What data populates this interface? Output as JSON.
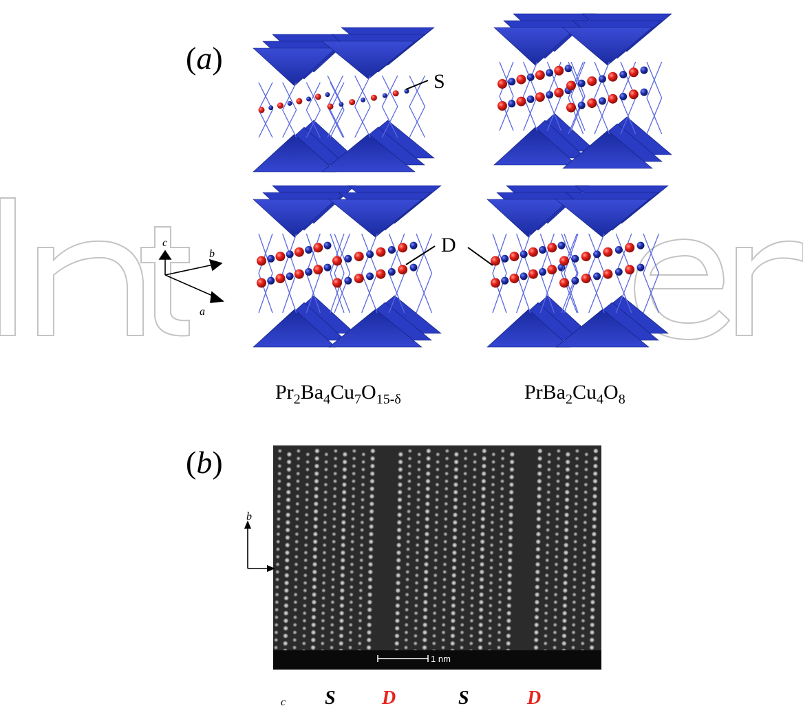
{
  "panel_a": {
    "label_open": "(",
    "label_letter": "a",
    "label_close": ")",
    "callout_single": "S",
    "callout_double": "D",
    "formula_left": {
      "p1": "Pr",
      "s1": "2",
      "p2": "Ba",
      "s2": "4",
      "p3": "Cu",
      "s3": "7",
      "p4": "O",
      "s4": "15-δ"
    },
    "formula_right": {
      "p1": "PrBa",
      "s1": "2",
      "p2": "Cu",
      "s2": "4",
      "p3": "O",
      "s3": "8"
    },
    "axes": {
      "c": "c",
      "b": "b",
      "a": "a"
    }
  },
  "panel_b": {
    "label_open": "(",
    "label_letter": "b",
    "label_close": ")",
    "scale_bar": "1 nm",
    "axes": {
      "b": "b",
      "c": "c"
    },
    "chain_labels": [
      {
        "text": "S",
        "color": "#000000"
      },
      {
        "text": "D",
        "color": "#e8231c"
      },
      {
        "text": "S",
        "color": "#000000"
      },
      {
        "text": "D",
        "color": "#e8231c"
      }
    ]
  },
  "colors": {
    "polyhedra": "#2233b4",
    "oxygen": "#e8231c",
    "copper": "#1f2fb0",
    "watermark": "#bfbfbf"
  }
}
